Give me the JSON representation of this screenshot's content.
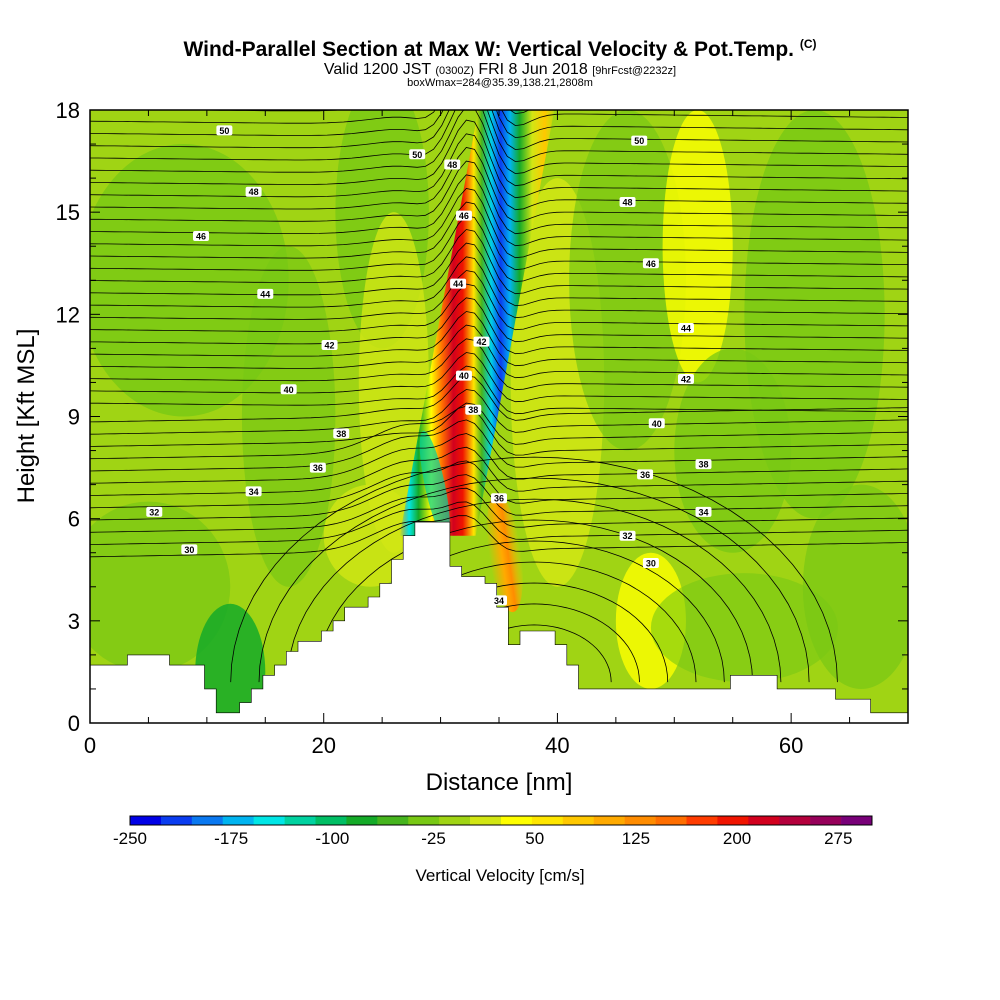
{
  "header": {
    "title": "Wind-Parallel Section at Max W: Vertical Velocity & Pot.Temp.",
    "copyright": "(C)",
    "subtitle_a": "Valid 1200 JST",
    "subtitle_b": "(0300Z)",
    "subtitle_c": "FRI 8 Jun 2018",
    "subtitle_d": "[9hrFcst@2232z]",
    "boxinfo": "boxWmax=284@35.39,138.21,2808m"
  },
  "chart_data": {
    "type": "heatmap",
    "title": "Wind-Parallel Section at Max W: Vertical Velocity & Pot.Temp.",
    "xlabel": "Distance [nm]",
    "ylabel": "Height [Kft MSL]",
    "xlim": [
      0,
      70
    ],
    "ylim": [
      0,
      18
    ],
    "xticks": [
      0,
      20,
      40,
      60
    ],
    "yticks": [
      0,
      3,
      6,
      9,
      12,
      15,
      18
    ],
    "colorbar": {
      "title": "Vertical Velocity [cm/s]",
      "bounds": [
        -250,
        300
      ],
      "labels": [
        -250,
        -175,
        -100,
        -25,
        50,
        125,
        200,
        275
      ],
      "colors": [
        "#0000e6",
        "#0a3cf0",
        "#0a78f0",
        "#00b4f0",
        "#00e6e6",
        "#00d2a0",
        "#00be64",
        "#14aa28",
        "#46b41e",
        "#78c814",
        "#a0d414",
        "#d2e614",
        "#ffff00",
        "#ffe600",
        "#ffc800",
        "#ffaa00",
        "#ff8c00",
        "#ff6e00",
        "#ff3c00",
        "#f01400",
        "#d2001e",
        "#b4003c",
        "#96005a",
        "#780078"
      ]
    },
    "terrain": [
      [
        0,
        1.7
      ],
      [
        1,
        1.7
      ],
      [
        3.2,
        1.7
      ],
      [
        3.2,
        2.0
      ],
      [
        6.8,
        2.0
      ],
      [
        6.8,
        1.7
      ],
      [
        9.8,
        1.7
      ],
      [
        9.8,
        1.0
      ],
      [
        10.8,
        1.0
      ],
      [
        10.8,
        0.3
      ],
      [
        12.8,
        0.3
      ],
      [
        12.8,
        0.6
      ],
      [
        13.8,
        0.6
      ],
      [
        13.8,
        1.0
      ],
      [
        14.8,
        1.0
      ],
      [
        14.8,
        1.4
      ],
      [
        15.8,
        1.4
      ],
      [
        15.8,
        1.7
      ],
      [
        16.8,
        1.7
      ],
      [
        16.8,
        2.1
      ],
      [
        17.8,
        2.1
      ],
      [
        17.8,
        2.4
      ],
      [
        19.8,
        2.4
      ],
      [
        19.8,
        2.7
      ],
      [
        20.8,
        2.7
      ],
      [
        20.8,
        3.0
      ],
      [
        21.8,
        3.0
      ],
      [
        21.8,
        3.4
      ],
      [
        23.8,
        3.4
      ],
      [
        23.8,
        3.7
      ],
      [
        24.8,
        3.7
      ],
      [
        24.8,
        4.1
      ],
      [
        25.8,
        4.1
      ],
      [
        25.8,
        4.8
      ],
      [
        26.8,
        4.8
      ],
      [
        26.8,
        5.5
      ],
      [
        27.8,
        5.5
      ],
      [
        27.8,
        5.9
      ],
      [
        30.8,
        5.9
      ],
      [
        30.8,
        4.6
      ],
      [
        31.8,
        4.6
      ],
      [
        31.8,
        4.3
      ],
      [
        33.8,
        4.3
      ],
      [
        33.8,
        4.1
      ],
      [
        34.8,
        4.1
      ],
      [
        34.8,
        3.4
      ],
      [
        35.8,
        3.4
      ],
      [
        35.8,
        2.3
      ],
      [
        36.8,
        2.3
      ],
      [
        36.8,
        2.7
      ],
      [
        39.8,
        2.7
      ],
      [
        39.8,
        2.3
      ],
      [
        40.8,
        2.3
      ],
      [
        40.8,
        1.7
      ],
      [
        41.8,
        1.7
      ],
      [
        41.8,
        1.0
      ],
      [
        54.8,
        1.0
      ],
      [
        54.8,
        1.4
      ],
      [
        58.8,
        1.4
      ],
      [
        58.8,
        1.0
      ],
      [
        63.8,
        1.0
      ],
      [
        63.8,
        0.7
      ],
      [
        66.8,
        0.7
      ],
      [
        66.8,
        0.3
      ],
      [
        70,
        0.3
      ]
    ],
    "isentrope_labels": [
      {
        "text": "50",
        "x": 11.5,
        "y": 17.4
      },
      {
        "text": "50",
        "x": 28,
        "y": 16.7
      },
      {
        "text": "50",
        "x": 47,
        "y": 17.1
      },
      {
        "text": "48",
        "x": 14,
        "y": 15.6
      },
      {
        "text": "48",
        "x": 31,
        "y": 16.4
      },
      {
        "text": "48",
        "x": 46,
        "y": 15.3
      },
      {
        "text": "46",
        "x": 9.5,
        "y": 14.3
      },
      {
        "text": "46",
        "x": 32,
        "y": 14.9
      },
      {
        "text": "46",
        "x": 48,
        "y": 13.5
      },
      {
        "text": "44",
        "x": 15,
        "y": 12.6
      },
      {
        "text": "44",
        "x": 31.5,
        "y": 12.9
      },
      {
        "text": "44",
        "x": 51,
        "y": 11.6
      },
      {
        "text": "42",
        "x": 20.5,
        "y": 11.1
      },
      {
        "text": "42",
        "x": 33.5,
        "y": 11.2
      },
      {
        "text": "42",
        "x": 51,
        "y": 10.1
      },
      {
        "text": "40",
        "x": 17,
        "y": 9.8
      },
      {
        "text": "40",
        "x": 32,
        "y": 10.2
      },
      {
        "text": "40",
        "x": 48.5,
        "y": 8.8
      },
      {
        "text": "38",
        "x": 21.5,
        "y": 8.5
      },
      {
        "text": "38",
        "x": 32.8,
        "y": 9.2
      },
      {
        "text": "38",
        "x": 52.5,
        "y": 7.6
      },
      {
        "text": "36",
        "x": 19.5,
        "y": 7.5
      },
      {
        "text": "36",
        "x": 35,
        "y": 6.6
      },
      {
        "text": "36",
        "x": 47.5,
        "y": 7.3
      },
      {
        "text": "34",
        "x": 14,
        "y": 6.8
      },
      {
        "text": "34",
        "x": 35,
        "y": 3.6
      },
      {
        "text": "34",
        "x": 52.5,
        "y": 6.2
      },
      {
        "text": "32",
        "x": 5.5,
        "y": 6.2
      },
      {
        "text": "32",
        "x": 46,
        "y": 5.5
      },
      {
        "text": "30",
        "x": 8.5,
        "y": 5.1
      },
      {
        "text": "30",
        "x": 48,
        "y": 4.7
      }
    ]
  }
}
